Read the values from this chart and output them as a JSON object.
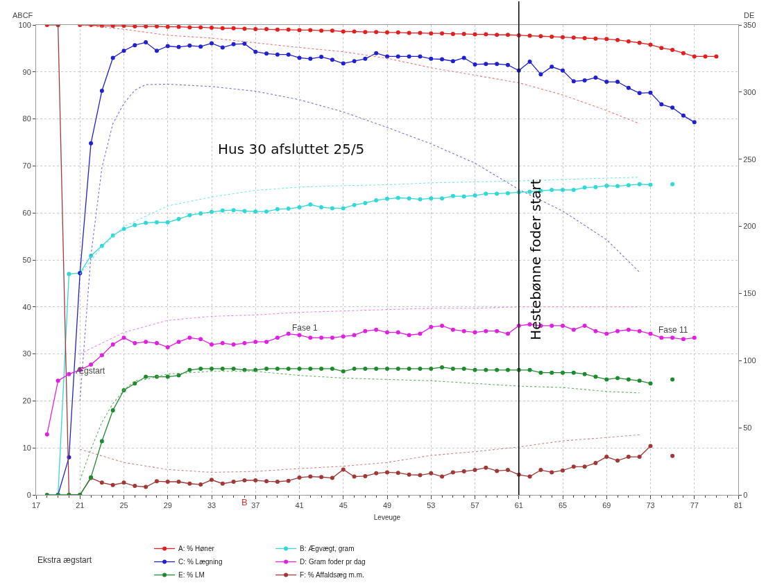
{
  "chart_data": {
    "type": "line",
    "xlabel": "Leveuge",
    "ylabel": "ABCF",
    "y2label": "DE",
    "x": [
      18,
      19,
      20,
      21,
      22,
      23,
      24,
      25,
      26,
      27,
      28,
      29,
      30,
      31,
      32,
      33,
      34,
      35,
      36,
      37,
      38,
      39,
      40,
      41,
      42,
      43,
      44,
      45,
      46,
      47,
      48,
      49,
      50,
      51,
      52,
      53,
      54,
      55,
      56,
      57,
      58,
      59,
      60,
      61,
      62,
      63,
      64,
      65,
      66,
      67,
      68,
      69,
      70,
      71,
      72,
      73,
      74,
      75,
      76,
      77,
      78,
      79
    ],
    "xlim": [
      17,
      81
    ],
    "xticks": [
      17,
      21,
      25,
      29,
      33,
      37,
      41,
      45,
      49,
      53,
      57,
      61,
      65,
      69,
      73,
      77,
      81
    ],
    "ylim": [
      0,
      100
    ],
    "yticks": [
      0,
      10,
      20,
      30,
      40,
      50,
      60,
      70,
      80,
      90,
      100
    ],
    "y2lim": [
      0,
      350
    ],
    "y2ticks": [
      0,
      50,
      100,
      150,
      200,
      250,
      300,
      350
    ],
    "grid": true,
    "legend": "bottom",
    "marker": "circle",
    "series": [
      {
        "name": "A: % Høner",
        "color": "#e02020",
        "values": [
          100,
          100,
          null,
          100,
          100,
          99.8,
          99.8,
          99.8,
          99.7,
          99.7,
          99.7,
          99.6,
          99.6,
          99.5,
          99.5,
          99.4,
          99.3,
          99.3,
          99.2,
          99.1,
          99.1,
          99.0,
          99.0,
          98.9,
          98.9,
          98.8,
          98.8,
          98.6,
          98.6,
          98.5,
          98.5,
          98.4,
          98.4,
          98.3,
          98.3,
          98.2,
          98.2,
          98.1,
          98.1,
          98.0,
          98.0,
          97.9,
          97.9,
          97.8,
          97.7,
          97.6,
          97.5,
          97.4,
          97.3,
          97.2,
          97.1,
          97.0,
          96.8,
          96.5,
          96.2,
          95.8,
          95.1,
          94.7,
          94.0,
          93.3,
          93.3,
          93.3
        ]
      },
      {
        "name": "B: Ægvægt, gram",
        "color": "#30d8d8",
        "values": [
          null,
          0,
          47,
          47.2,
          50.9,
          53.0,
          55.2,
          56.6,
          57.4,
          57.9,
          58.0,
          58.0,
          58.7,
          59.5,
          59.9,
          60.2,
          60.5,
          60.6,
          60.4,
          60.3,
          60.3,
          60.8,
          60.9,
          61.2,
          61.8,
          61.2,
          61.0,
          61.0,
          61.7,
          62.1,
          62.7,
          63.0,
          63.2,
          63.1,
          62.9,
          63.1,
          63.1,
          63.6,
          63.5,
          63.7,
          64.1,
          64.1,
          64.2,
          64.4,
          64.5,
          64.7,
          64.9,
          64.9,
          64.9,
          65.4,
          65.5,
          65.8,
          65.7,
          65.9,
          66.1,
          66.0,
          null,
          66.1,
          null,
          null,
          null,
          null
        ]
      },
      {
        "name": "C: % Lægning",
        "color": "#2020d0",
        "values": [
          null,
          0,
          8,
          47.2,
          74.8,
          86,
          93,
          94.5,
          95.7,
          96.3,
          94.5,
          95.5,
          95.3,
          95.6,
          95.4,
          96.1,
          95.2,
          95.9,
          96.0,
          94.3,
          93.9,
          93.7,
          93.7,
          93.0,
          92.8,
          93.2,
          92.6,
          91.8,
          92.3,
          92.8,
          94.0,
          93.3,
          93.3,
          93.3,
          93.3,
          92.8,
          92.7,
          92.3,
          93.0,
          91.6,
          91.7,
          91.7,
          91.5,
          90.3,
          92.2,
          89.5,
          91.1,
          90.3,
          88.0,
          88.2,
          88.8,
          87.9,
          87.9,
          86.6,
          85.5,
          85.6,
          83.1,
          82.4,
          80.7,
          79.3,
          null,
          null
        ]
      },
      {
        "name": "D: Gram foder pr dag",
        "color": "#e020e0",
        "axis": "y2",
        "values": [
          45,
          85,
          90,
          93,
          97,
          104,
          112,
          117,
          113,
          114,
          113,
          110,
          114,
          117,
          116,
          112,
          113,
          112,
          113,
          114,
          114,
          117,
          120,
          119,
          117,
          117,
          117,
          118,
          119,
          122,
          123,
          121,
          121,
          119,
          120,
          125,
          126,
          123,
          122,
          121,
          122,
          122,
          120,
          126,
          127,
          126,
          126,
          126,
          123,
          126,
          122,
          120,
          122,
          123,
          122,
          120,
          117,
          117,
          116,
          117,
          null,
          null
        ]
      },
      {
        "name": "E: % LM",
        "color": "#1e8a2e",
        "axis": "y2",
        "values": [
          0,
          0,
          0,
          0,
          13,
          40,
          63,
          78,
          83,
          88,
          88,
          88,
          89,
          93,
          94,
          94,
          94,
          94,
          93,
          93,
          94,
          94,
          94,
          94,
          94,
          94,
          94,
          92,
          94,
          94,
          94,
          94,
          94,
          94,
          94,
          94,
          95,
          94,
          94,
          93,
          93,
          93,
          93,
          93,
          93,
          91,
          91,
          91,
          91,
          90,
          88,
          86,
          87,
          86,
          85,
          83,
          null,
          86,
          null,
          null,
          null,
          null
        ]
      },
      {
        "name": "F: % Affaldsæg m.m.",
        "color": "#a03838",
        "values": [
          null,
          100,
          0,
          0,
          3.6,
          2.6,
          2.1,
          2.6,
          1.9,
          1.7,
          2.9,
          2.8,
          2.8,
          2.4,
          2.2,
          3.2,
          2.4,
          2.8,
          3.1,
          3.1,
          2.9,
          2.8,
          3.0,
          3.7,
          3.9,
          3.8,
          3.6,
          5.4,
          3.9,
          4.0,
          4.6,
          4.8,
          4.7,
          4.3,
          4.2,
          4.6,
          3.9,
          4.8,
          5.0,
          5.3,
          5.8,
          5.1,
          5.3,
          4.3,
          3.9,
          5.3,
          4.8,
          5.2,
          6.0,
          6.0,
          6.8,
          8.1,
          7.3,
          8.1,
          8.1,
          10.4,
          null,
          8.3,
          null,
          null,
          null,
          null
        ]
      },
      {
        "color": "#f07070",
        "line_style": "dotted",
        "marker": "none",
        "x": [
          21,
          25,
          29,
          33,
          37,
          41,
          45,
          49,
          53,
          57,
          61,
          65,
          69,
          72
        ],
        "values": [
          100,
          99.1,
          97.8,
          97.2,
          96.2,
          95.2,
          94.3,
          92.9,
          90.9,
          89.3,
          87.7,
          85.1,
          81.8,
          79.0
        ]
      },
      {
        "color": "#7070e0",
        "line_style": "dotted",
        "marker": "none",
        "x": [
          21,
          22,
          23,
          24,
          25,
          26,
          27,
          29,
          33,
          37,
          41,
          45,
          49,
          53,
          57,
          61,
          65,
          69,
          72
        ],
        "values": [
          20,
          51,
          69.6,
          79,
          83.3,
          86.1,
          87.3,
          87.4,
          86.9,
          85.9,
          84.1,
          81.5,
          78.2,
          74.7,
          70.6,
          65.0,
          60.4,
          54.3,
          47.4
        ]
      },
      {
        "color": "#70e8e8",
        "line_style": "dotted",
        "marker": "none",
        "x": [
          21,
          23,
          25,
          29,
          33,
          37,
          41,
          45,
          49,
          53,
          57,
          61,
          65,
          69,
          72
        ],
        "values": [
          47,
          52.8,
          57.1,
          61.5,
          63.4,
          64.8,
          65.5,
          65.8,
          66.0,
          66.4,
          66.6,
          66.8,
          67.1,
          67.4,
          67.6
        ]
      },
      {
        "color": "#f080f0",
        "line_style": "dotted",
        "marker": "none",
        "axis": "y2",
        "x": [
          21,
          25,
          29,
          33,
          37,
          41,
          45,
          49,
          53,
          57,
          61,
          65,
          69,
          72
        ],
        "values": [
          105,
          121,
          130,
          133,
          134,
          136,
          137,
          138,
          139,
          139,
          140,
          140,
          140,
          140
        ]
      },
      {
        "color": "#60b060",
        "line_style": "dotted",
        "marker": "none",
        "axis": "y2",
        "x": [
          21,
          22,
          23,
          24,
          25,
          26,
          27,
          29,
          33,
          37,
          41,
          45,
          49,
          53,
          57,
          61,
          65,
          69,
          72
        ],
        "values": [
          11,
          34,
          54,
          68,
          78,
          85,
          86,
          90,
          92,
          92,
          89,
          87,
          86,
          85,
          83,
          81,
          80,
          77,
          76
        ]
      },
      {
        "color": "#d08080",
        "line_style": "dotted",
        "marker": "none",
        "x": [
          21,
          25,
          29,
          33,
          37,
          41,
          45,
          49,
          53,
          57,
          61,
          65,
          69,
          72
        ],
        "values": [
          9.7,
          6.9,
          5.4,
          4.8,
          5.0,
          5.6,
          6.1,
          6.9,
          8.4,
          9.2,
          10.2,
          11.5,
          12.2,
          12.8
        ]
      }
    ],
    "ref_lines": [
      {
        "axis": "x",
        "value": 61,
        "label": "Hestebønne foder start",
        "color": "#000000",
        "line_style": "solid"
      }
    ],
    "annotations": [
      "Hus 30 afsluttet 25/5",
      "Ekstra ægstart",
      "Fase 1",
      "Fase 11",
      "Ægstart",
      "B"
    ]
  }
}
